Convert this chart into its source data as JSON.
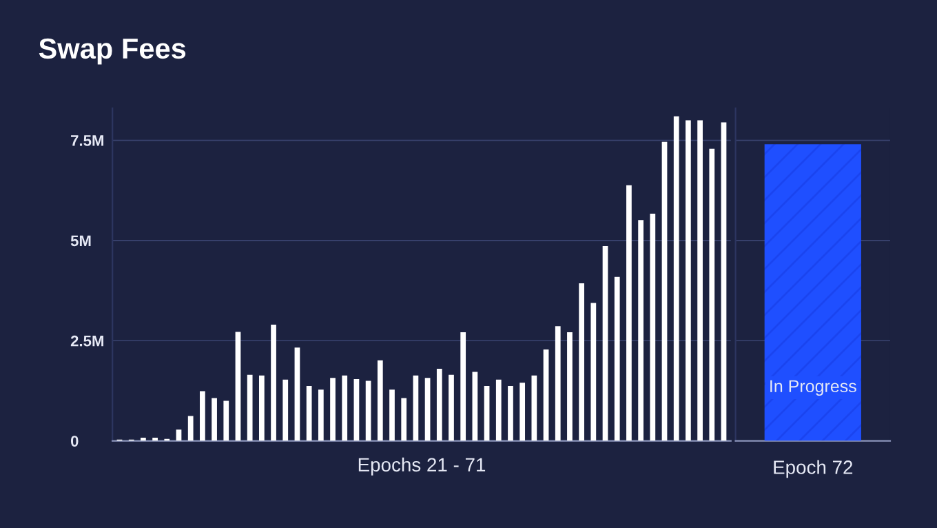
{
  "chart_data": [
    {
      "type": "bar",
      "title": "Swap Fees",
      "xlabel": "Epochs 21 - 71",
      "categories": [
        null,
        null,
        null,
        null,
        null,
        null,
        null,
        null,
        null,
        null,
        null,
        null,
        null,
        null,
        null,
        null,
        null,
        null,
        null,
        null,
        null,
        null,
        null,
        null,
        null,
        null,
        null,
        null,
        null,
        null,
        null,
        null,
        null,
        null,
        null,
        null,
        null,
        null,
        null,
        null,
        null,
        null,
        null,
        null,
        null,
        null,
        null,
        null,
        null,
        null,
        null,
        null
      ],
      "series": [
        {
          "color": "#ffffff",
          "values": [
            0.03,
            0.03,
            0.08,
            0.08,
            0.05,
            0.28,
            0.62,
            1.24,
            1.07,
            1.0,
            2.72,
            1.65,
            1.63,
            2.9,
            1.53,
            2.33,
            1.37,
            1.28,
            1.57,
            1.63,
            1.54,
            1.5,
            2.01,
            1.28,
            1.07,
            1.63,
            1.57,
            1.8,
            1.65,
            2.71,
            1.72,
            1.37,
            1.53,
            1.37,
            1.45,
            1.63,
            2.28,
            2.86,
            2.71,
            3.93,
            3.44,
            4.86,
            4.09,
            6.38,
            5.51,
            5.67,
            7.46,
            8.1,
            8.0,
            8.0,
            7.29,
            7.95
          ]
        }
      ],
      "ylim": [
        0,
        8.3
      ],
      "yticks": [
        0,
        {
          "value": 2.5,
          "label": "2.5M"
        },
        {
          "value": 5,
          "label": "5M"
        },
        {
          "value": 7.5,
          "label": "7.5M"
        }
      ],
      "grid": "y"
    },
    {
      "type": "bar",
      "categories": [
        "Epoch 72"
      ],
      "series": [
        {
          "color": "#1f4fff",
          "values": [
            7.4
          ]
        }
      ],
      "annotations": [
        "In Progress"
      ],
      "ylim": [
        0,
        8.3
      ],
      "yticks": [
        {
          "value": 0,
          "label": null
        },
        {
          "value": 2.5,
          "label": null
        },
        {
          "value": 5,
          "label": null
        },
        {
          "value": 7.5,
          "label": null
        }
      ],
      "grid": "y",
      "tick_labels": "x"
    }
  ]
}
